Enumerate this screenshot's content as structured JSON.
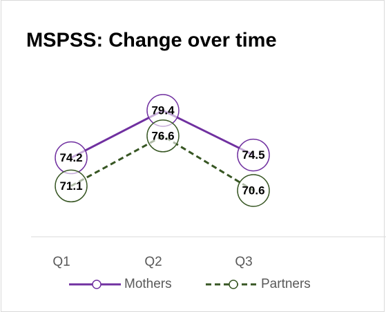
{
  "chart_data": {
    "type": "line",
    "title": "MSPSS: Change over time",
    "categories": [
      "Q1",
      "Q2",
      "Q3"
    ],
    "series": [
      {
        "name": "Mothers",
        "color": "#7030a0",
        "dash": false,
        "values": [
          74.2,
          79.4,
          74.5
        ]
      },
      {
        "name": "Partners",
        "color": "#375623",
        "dash": true,
        "values": [
          71.1,
          76.6,
          70.6
        ]
      }
    ],
    "legend": "bottom"
  }
}
